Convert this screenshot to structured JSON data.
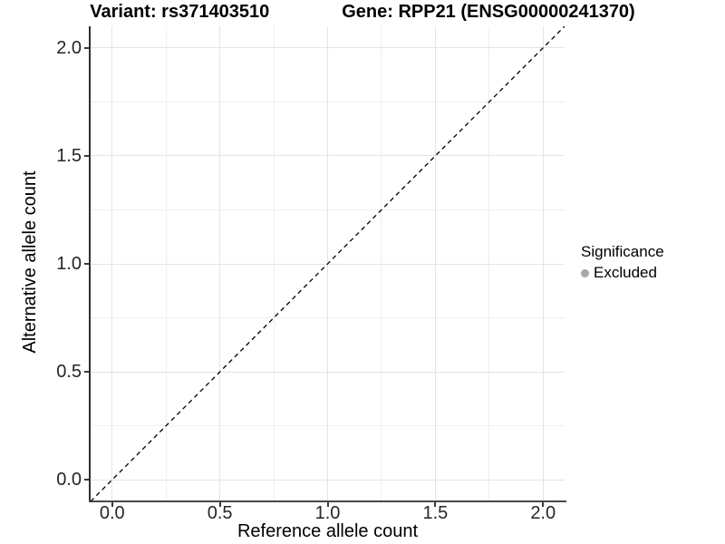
{
  "chart_data": {
    "type": "scatter",
    "titles": {
      "variant": "Variant: rs371403510",
      "gene": "Gene: RPP21 (ENSG00000241370)"
    },
    "xlabel": "Reference allele count",
    "ylabel": "Alternative allele count",
    "xlim": [
      -0.1,
      2.1
    ],
    "ylim": [
      -0.1,
      2.1
    ],
    "x_ticks": {
      "values": [
        0,
        0.5,
        1,
        1.5,
        2
      ],
      "labels": [
        "0.0",
        "0.5",
        "1.0",
        "1.5",
        "2.0"
      ]
    },
    "y_ticks": {
      "values": [
        0,
        0.5,
        1,
        1.5,
        2
      ],
      "labels": [
        "0.0",
        "0.5",
        "1.0",
        "1.5",
        "2.0"
      ]
    },
    "x_minor_ticks": [
      0.25,
      0.75,
      1.25,
      1.75
    ],
    "y_minor_ticks": [
      0.25,
      0.75,
      1.25,
      1.75
    ],
    "series": [
      {
        "name": "Excluded",
        "marker": "circle",
        "color": "#a8a8a8",
        "points": []
      }
    ],
    "reference_line": {
      "slope": 1,
      "intercept": 0,
      "style": "dashed",
      "color": "#000000"
    },
    "legend": {
      "title": "Significance",
      "position": "right",
      "items": [
        {
          "label": "Excluded",
          "marker": "circle",
          "color": "#a8a8a8"
        }
      ]
    },
    "grid": {
      "show_major": true,
      "show_minor": true,
      "major_color": "#e4e4e4",
      "minor_color": "#efefef"
    },
    "colors": {
      "axis_line": "#3a3a3a",
      "tick_label": "#262626",
      "background": "#ffffff"
    }
  }
}
